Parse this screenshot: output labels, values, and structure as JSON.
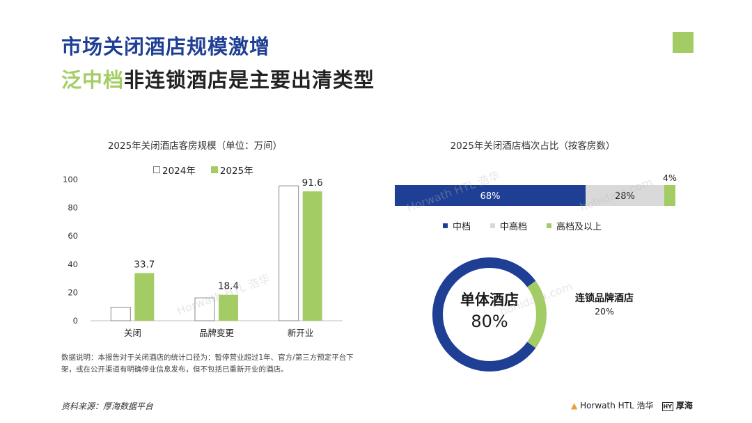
{
  "title": {
    "line1": "市场关闭酒店规模激增",
    "line2_highlight": "泛中档",
    "line2_rest": "非连锁酒店是主要出清类型"
  },
  "colors": {
    "navy": "#1f3f94",
    "green": "#a3cd64",
    "grey": "#d9d9d9"
  },
  "chart_data": [
    {
      "type": "bar",
      "title": "2025年关闭酒店客房规模（单位：万间）",
      "categories": [
        "关闭",
        "品牌变更",
        "新开业"
      ],
      "series": [
        {
          "name": "2024年",
          "values": [
            9.6,
            16.2,
            95.5
          ],
          "labeled": false
        },
        {
          "name": "2025年",
          "values": [
            33.7,
            18.4,
            91.6
          ],
          "labeled": true
        }
      ],
      "ylim": [
        0,
        100
      ],
      "yticks": [
        0,
        20,
        40,
        60,
        80,
        100
      ],
      "legend": "top"
    },
    {
      "type": "bar",
      "subtype": "stacked-horizontal-100",
      "title": "2025年关闭酒店档次占比（按客房数）",
      "series": [
        {
          "name": "中档",
          "value": 68,
          "label": "68%",
          "color": "#1f3f94"
        },
        {
          "name": "中高档",
          "value": 28,
          "label": "28%",
          "color": "#d9d9d9"
        },
        {
          "name": "高档及以上",
          "value": 4,
          "label": "4%",
          "color": "#a3cd64"
        }
      ],
      "legend": "bottom"
    },
    {
      "type": "pie",
      "subtype": "donut",
      "slices": [
        {
          "name": "单体酒店",
          "value": 80,
          "label": "80%",
          "color": "#1f3f94"
        },
        {
          "name": "连锁品牌酒店",
          "value": 20,
          "label": "20%",
          "color": "#a3cd64"
        }
      ]
    }
  ],
  "note": "数据说明：本报告对于关闭酒店的统计口径为：暂停营业超过1年、官方/第三方预定平台下架，或在公开渠道有明确停业信息发布，但不包括已重新开业的酒店。",
  "source": "资料来源：厚海数据平台",
  "logos": {
    "horwath": "Horwath HTL 浩华",
    "houhai_mark": "HY",
    "houhai_name": "厚海"
  },
  "watermarks": [
    "Horwath HTL 浩华",
    "hohidata.com"
  ]
}
